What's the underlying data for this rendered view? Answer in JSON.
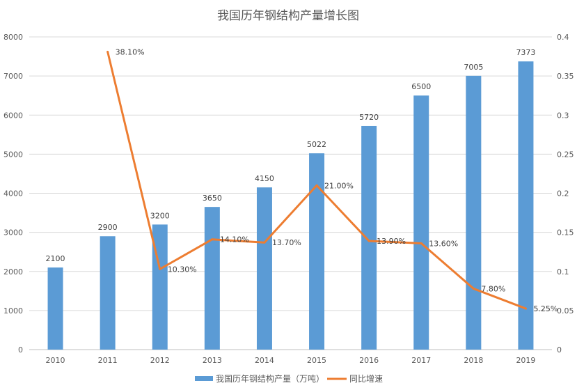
{
  "chart_data": {
    "type": "bar+line",
    "title": "我国历年钢结构产量增长图",
    "categories": [
      "2010",
      "2011",
      "2012",
      "2013",
      "2014",
      "2015",
      "2016",
      "2017",
      "2018",
      "2019"
    ],
    "series": [
      {
        "name": "我国历年钢结构产量（万吨）",
        "type": "bar",
        "axis": "left",
        "color": "#5b9bd5",
        "values": [
          2100,
          2900,
          3200,
          3650,
          4150,
          5022,
          5720,
          6500,
          7005,
          7373
        ],
        "labels": [
          "2100",
          "2900",
          "3200",
          "3650",
          "4150",
          "5022",
          "5720",
          "6500",
          "7005",
          "7373"
        ]
      },
      {
        "name": "同比增速",
        "type": "line",
        "axis": "right",
        "color": "#ed7d31",
        "values": [
          null,
          0.381,
          0.103,
          0.141,
          0.137,
          0.21,
          0.139,
          0.136,
          0.078,
          0.0525
        ],
        "labels": [
          "",
          "38.10%",
          "10.30%",
          "14.10%",
          "13.70%",
          "21.00%",
          "13.90%",
          "13.60%",
          "7.80%",
          "5.25%"
        ]
      }
    ],
    "y_left": {
      "range": [
        0,
        8000
      ],
      "ticks": [
        "0",
        "1000",
        "2000",
        "3000",
        "4000",
        "5000",
        "6000",
        "7000",
        "8000"
      ]
    },
    "y_right": {
      "range": [
        0,
        0.4
      ],
      "ticks": [
        "0",
        "0.05",
        "0.1",
        "0.15",
        "0.2",
        "0.25",
        "0.3",
        "0.35",
        "0.4"
      ]
    },
    "grid": true,
    "legend": "bottom"
  }
}
